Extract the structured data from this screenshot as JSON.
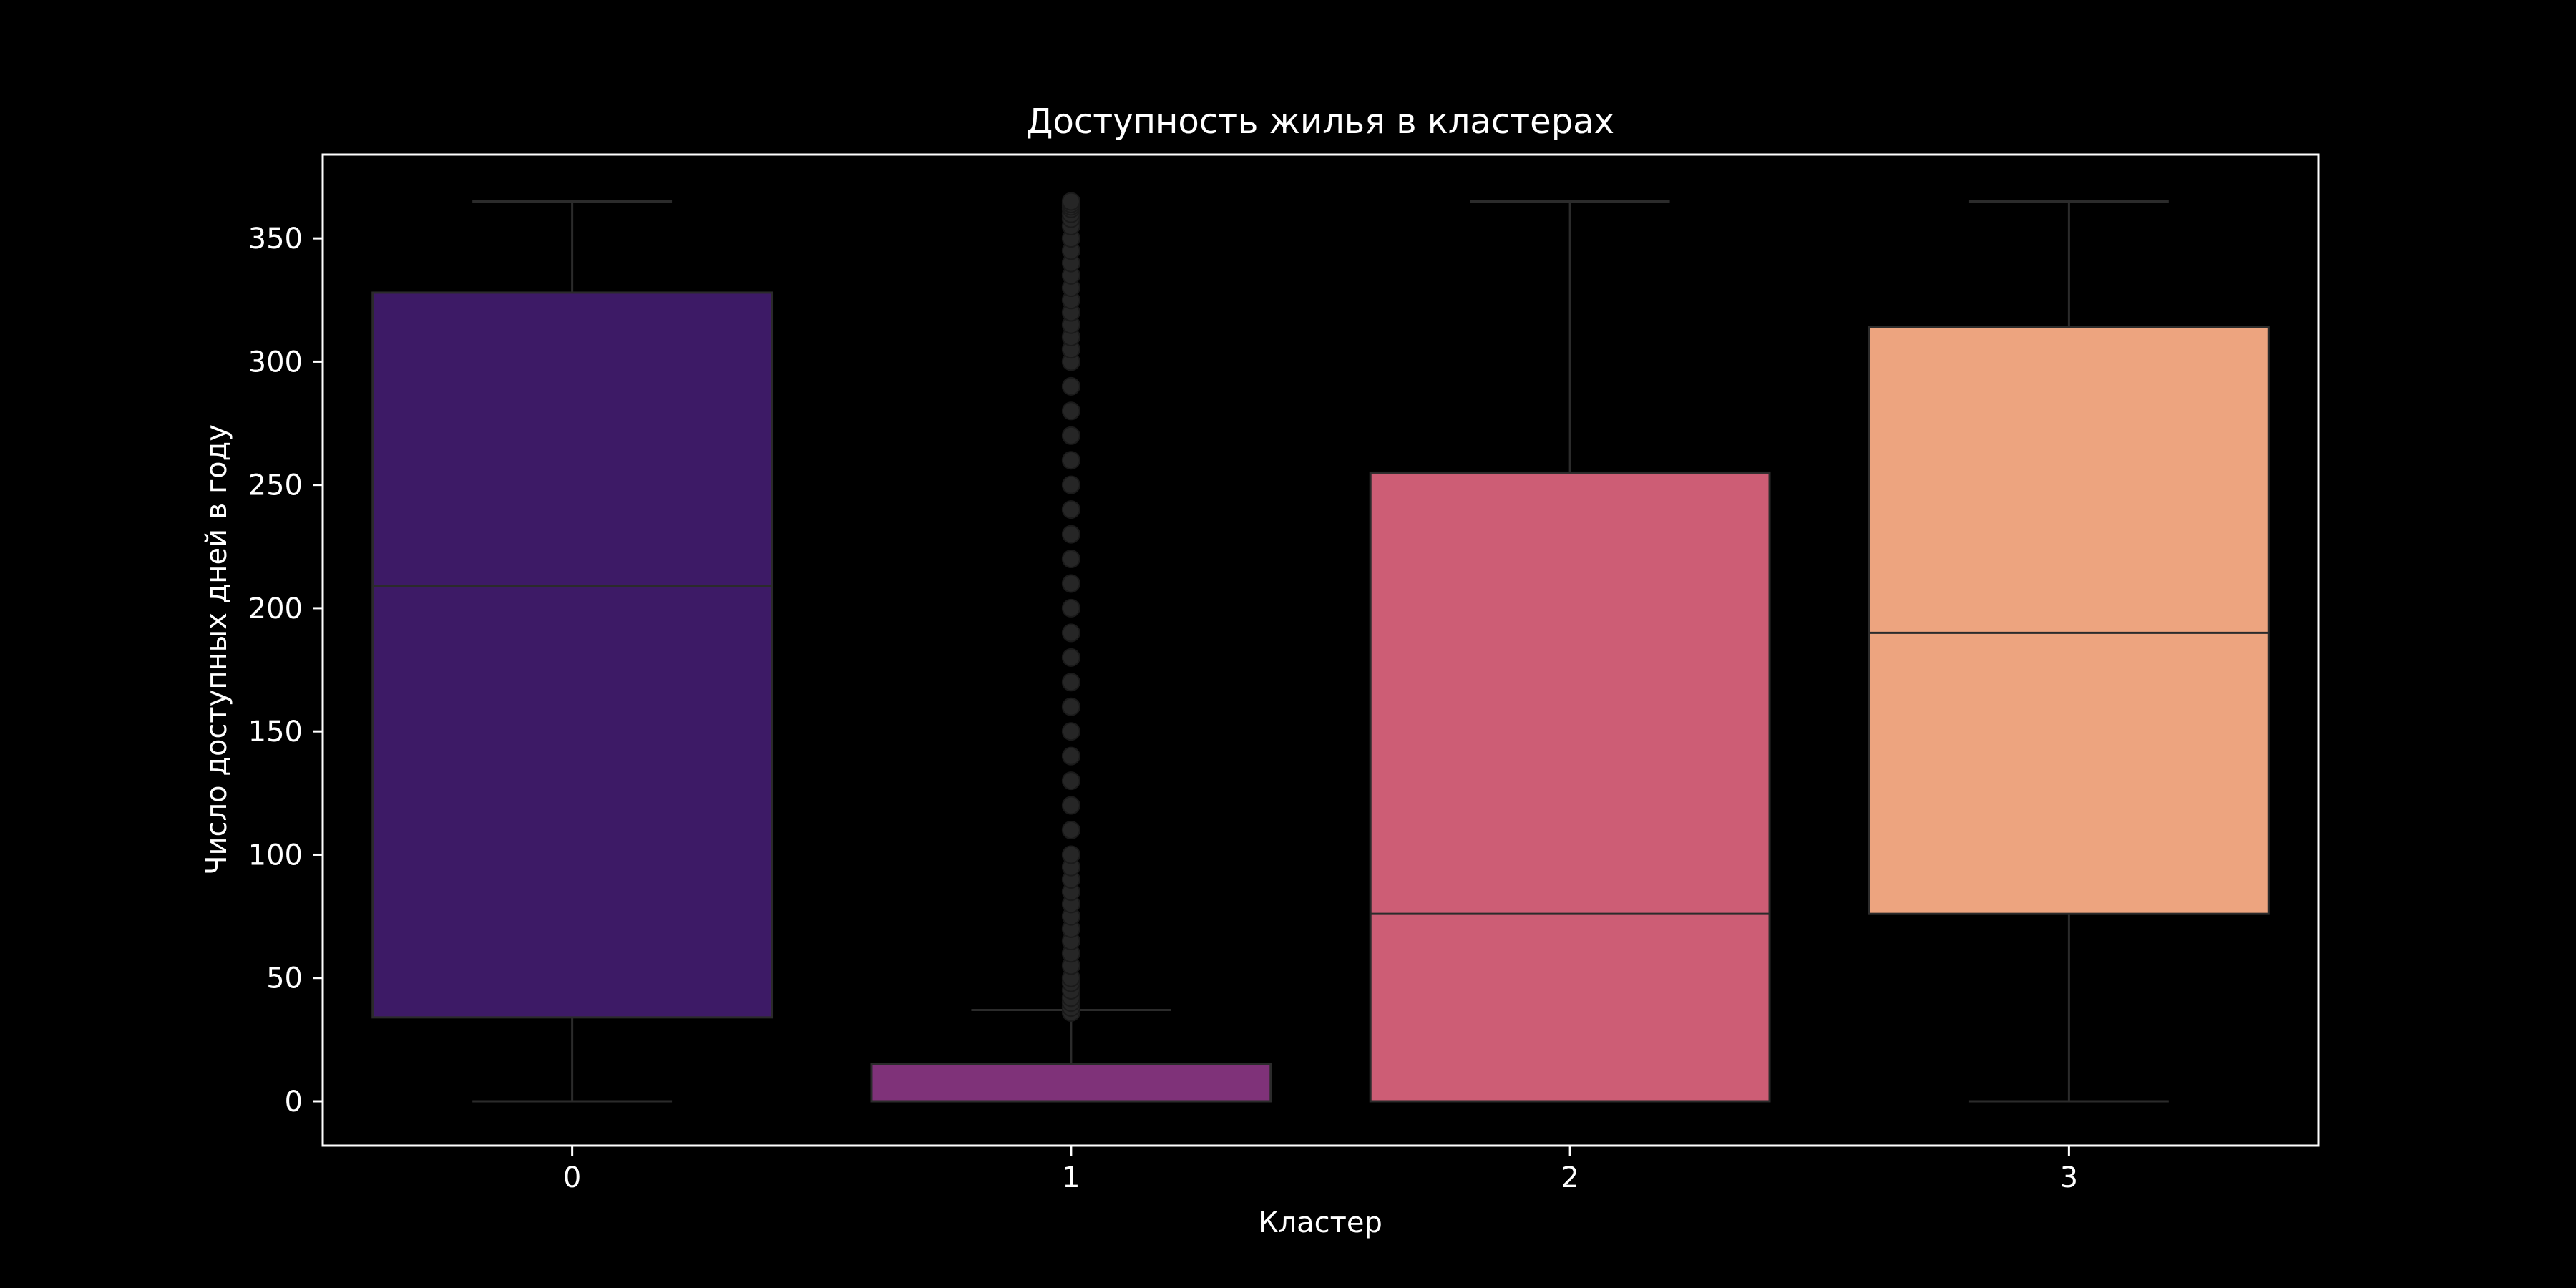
{
  "chart_data": {
    "type": "box",
    "title": "Доступность жилья в кластерах",
    "xlabel": "Кластер",
    "ylabel": "Число доступных дней в году",
    "categories": [
      "0",
      "1",
      "2",
      "3"
    ],
    "ylim": [
      -18,
      384
    ],
    "yticks": [
      0,
      50,
      100,
      150,
      200,
      250,
      300,
      350
    ],
    "grid": false,
    "boxes": [
      {
        "category": "0",
        "whisker_low": 0,
        "q1": 34,
        "median": 209,
        "q3": 328,
        "whisker_high": 365,
        "color": "#3d1a66",
        "outliers": []
      },
      {
        "category": "1",
        "whisker_low": 0,
        "q1": 0,
        "median": 0,
        "q3": 15,
        "whisker_high": 37,
        "color": "#7f3279",
        "outliers": [
          36,
          38,
          40,
          42,
          45,
          48,
          50,
          55,
          60,
          65,
          70,
          75,
          80,
          85,
          90,
          95,
          100,
          110,
          120,
          130,
          140,
          150,
          160,
          170,
          180,
          190,
          200,
          210,
          220,
          230,
          240,
          250,
          260,
          270,
          280,
          290,
          300,
          305,
          310,
          315,
          320,
          325,
          330,
          335,
          340,
          345,
          350,
          355,
          358,
          360,
          362,
          363,
          364,
          365
        ]
      },
      {
        "category": "2",
        "whisker_low": 0,
        "q1": 0,
        "median": 76,
        "q3": 255,
        "whisker_high": 365,
        "color": "#cd5d75",
        "outliers": []
      },
      {
        "category": "3",
        "whisker_low": 0,
        "q1": 76,
        "median": 190,
        "q3": 314,
        "whisker_high": 365,
        "color": "#eda47f",
        "outliers": []
      }
    ]
  }
}
